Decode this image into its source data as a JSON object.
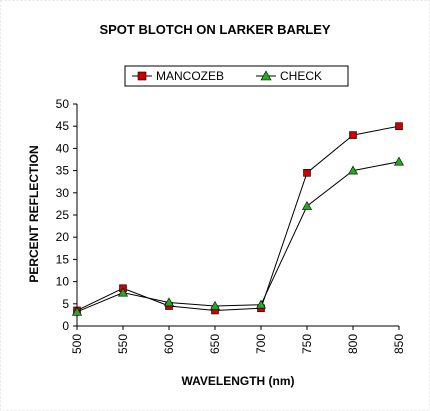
{
  "chart_data": {
    "type": "line",
    "title": "SPOT BLOTCH ON LARKER BARLEY",
    "xlabel": "WAVELENGTH (nm)",
    "ylabel": "PERCENT REFLECTION",
    "x": [
      500,
      550,
      600,
      650,
      700,
      750,
      800,
      850
    ],
    "x_tick_labels": [
      "500",
      "550",
      "600",
      "650",
      "700",
      "750",
      "800",
      "850"
    ],
    "y_tick_labels": [
      "0",
      "5",
      "10",
      "15",
      "20",
      "25",
      "30",
      "35",
      "40",
      "45",
      "50"
    ],
    "ylim": [
      0,
      50
    ],
    "xlim": [
      500,
      850
    ],
    "grid": false,
    "legend_position": "top",
    "series": [
      {
        "name": "MANCOZEB",
        "marker": "square",
        "color": "#cc0000",
        "values": [
          3.5,
          8.5,
          4.5,
          3.5,
          4.0,
          34.5,
          43.0,
          45.0
        ]
      },
      {
        "name": "CHECK",
        "marker": "triangle",
        "color": "#22aa22",
        "values": [
          3.2,
          7.5,
          5.3,
          4.5,
          4.8,
          27.0,
          35.0,
          37.0
        ]
      }
    ]
  }
}
